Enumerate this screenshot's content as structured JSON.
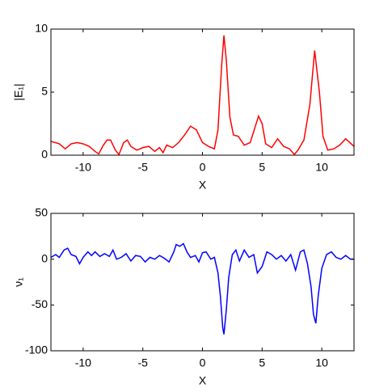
{
  "chart_data": [
    {
      "type": "line",
      "ylabel": "|E₁|",
      "xlabel": "X",
      "x": [
        -12.7,
        -12,
        -11.5,
        -11,
        -10.5,
        -10,
        -9.5,
        -9,
        -8.7,
        -8.3,
        -8,
        -7.7,
        -7.3,
        -7,
        -6.6,
        -6.3,
        -6,
        -5.5,
        -5,
        -4.5,
        -4,
        -3.6,
        -3.3,
        -3,
        -2.5,
        -2,
        -1.5,
        -1,
        -0.5,
        0,
        0.5,
        1,
        1.3,
        1.6,
        1.8,
        2.0,
        2.3,
        2.6,
        3,
        3.5,
        4,
        4.4,
        4.7,
        5,
        5.3,
        5.8,
        6.3,
        6.8,
        7.3,
        7.7,
        8,
        8.5,
        9,
        9.4,
        9.8,
        10.1,
        10.5,
        11,
        11.5,
        12,
        12.7
      ],
      "values": [
        1.1,
        0.9,
        0.5,
        0.9,
        1.0,
        0.9,
        0.7,
        0.3,
        0.1,
        0.8,
        1.2,
        1.2,
        0.4,
        0.05,
        1.0,
        1.2,
        0.7,
        0.4,
        0.6,
        0.7,
        0.3,
        0.6,
        0.2,
        0.8,
        0.6,
        1.0,
        1.6,
        2.3,
        2.0,
        1.0,
        0.7,
        0.5,
        2,
        7,
        9.5,
        7.5,
        3.0,
        1.6,
        1.5,
        0.8,
        1.0,
        2.2,
        3.1,
        2.5,
        0.9,
        0.6,
        1.3,
        0.7,
        0.5,
        0.05,
        0.4,
        1.2,
        4,
        8.3,
        5,
        1.5,
        0.4,
        0.5,
        0.8,
        1.3,
        0.7
      ],
      "color": "#ff0000",
      "xlim": [
        -12.7,
        12.7
      ],
      "xticks": [
        -10,
        -5,
        0,
        5,
        10
      ],
      "ylim": [
        0,
        10
      ],
      "yticks": [
        0,
        5,
        10
      ]
    },
    {
      "type": "line",
      "ylabel": "ν₁",
      "xlabel": "X",
      "x": [
        -12.7,
        -12.3,
        -12,
        -11.6,
        -11.3,
        -11,
        -10.6,
        -10.3,
        -10,
        -9.6,
        -9.3,
        -9,
        -8.6,
        -8.2,
        -7.8,
        -7.5,
        -7.2,
        -6.8,
        -6.4,
        -6,
        -5.6,
        -5.2,
        -4.8,
        -4.4,
        -4,
        -3.6,
        -3.2,
        -2.8,
        -2.4,
        -2.2,
        -1.9,
        -1.6,
        -1.3,
        -1,
        -0.6,
        -0.3,
        0,
        0.3,
        0.7,
        1,
        1.3,
        1.5,
        1.7,
        1.8,
        2.0,
        2.2,
        2.5,
        2.8,
        3.1,
        3.5,
        3.9,
        4.3,
        4.6,
        5,
        5.4,
        5.8,
        6.2,
        6.6,
        7,
        7.4,
        7.8,
        8.2,
        8.5,
        8.8,
        9.1,
        9.3,
        9.5,
        9.7,
        10,
        10.4,
        10.8,
        11.2,
        11.6,
        12,
        12.4,
        12.7
      ],
      "values": [
        2,
        5,
        2,
        10,
        12,
        5,
        3,
        -5,
        2,
        8,
        4,
        8,
        3,
        6,
        3,
        10,
        0,
        2,
        6,
        -2,
        4,
        3,
        -3,
        2,
        0,
        4,
        1,
        -3,
        8,
        16,
        14,
        17,
        8,
        2,
        4,
        -3,
        7,
        8,
        0,
        2,
        -15,
        -40,
        -75,
        -82,
        -55,
        -20,
        5,
        10,
        -2,
        10,
        2,
        5,
        -15,
        -8,
        8,
        5,
        0,
        4,
        -2,
        5,
        -12,
        8,
        10,
        -5,
        -30,
        -60,
        -70,
        -40,
        -10,
        5,
        8,
        2,
        0,
        4,
        0,
        0
      ],
      "color": "#0000ff",
      "xlim": [
        -12.7,
        12.7
      ],
      "xticks": [
        -10,
        -5,
        0,
        5,
        10
      ],
      "ylim": [
        -100,
        50
      ],
      "yticks": [
        -100,
        -50,
        0,
        50
      ]
    }
  ]
}
